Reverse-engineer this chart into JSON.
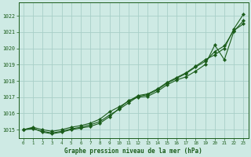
{
  "title": "Graphe pression niveau de la mer (hPa)",
  "bg_color": "#ceeae4",
  "grid_color": "#a8cfc8",
  "line_color": "#1a5c1a",
  "xlim": [
    -0.5,
    23.5
  ],
  "ylim": [
    1014.5,
    1022.8
  ],
  "yticks": [
    1015,
    1016,
    1017,
    1018,
    1019,
    1020,
    1021,
    1022
  ],
  "xticks": [
    0,
    1,
    2,
    3,
    4,
    5,
    6,
    7,
    8,
    9,
    10,
    11,
    12,
    13,
    14,
    15,
    16,
    17,
    18,
    19,
    20,
    21,
    22,
    23
  ],
  "series1_x": [
    0,
    1,
    2,
    3,
    4,
    5,
    6,
    7,
    8,
    9,
    10,
    11,
    12,
    13,
    14,
    15,
    16,
    17,
    18,
    19,
    20,
    21,
    22,
    23
  ],
  "series1_y": [
    1015.0,
    1015.1,
    1014.85,
    1014.75,
    1014.85,
    1015.0,
    1015.1,
    1015.2,
    1015.4,
    1015.8,
    1016.3,
    1016.8,
    1017.0,
    1017.05,
    1017.35,
    1017.75,
    1018.05,
    1018.25,
    1018.6,
    1019.0,
    1020.2,
    1019.3,
    1021.05,
    1021.7
  ],
  "series2_x": [
    0,
    1,
    2,
    3,
    4,
    5,
    6,
    7,
    8,
    9,
    10,
    11,
    12,
    13,
    14,
    15,
    16,
    17,
    18,
    19,
    20,
    21,
    22,
    23
  ],
  "series2_y": [
    1015.0,
    1015.15,
    1015.0,
    1014.9,
    1015.0,
    1015.15,
    1015.25,
    1015.4,
    1015.65,
    1016.1,
    1016.4,
    1016.75,
    1017.1,
    1017.2,
    1017.5,
    1017.9,
    1018.2,
    1018.5,
    1018.9,
    1019.3,
    1019.6,
    1020.0,
    1021.2,
    1022.1
  ],
  "series3_x": [
    0,
    1,
    2,
    3,
    4,
    5,
    6,
    7,
    8,
    9,
    10,
    11,
    12,
    13,
    14,
    15,
    16,
    17,
    18,
    19,
    20,
    21,
    22,
    23
  ],
  "series3_y": [
    1015.0,
    1015.05,
    1014.9,
    1014.8,
    1014.9,
    1015.05,
    1015.15,
    1015.3,
    1015.5,
    1015.9,
    1016.25,
    1016.65,
    1017.05,
    1017.15,
    1017.45,
    1017.85,
    1018.15,
    1018.45,
    1018.85,
    1019.2,
    1019.8,
    1020.15,
    1021.1,
    1021.5
  ]
}
